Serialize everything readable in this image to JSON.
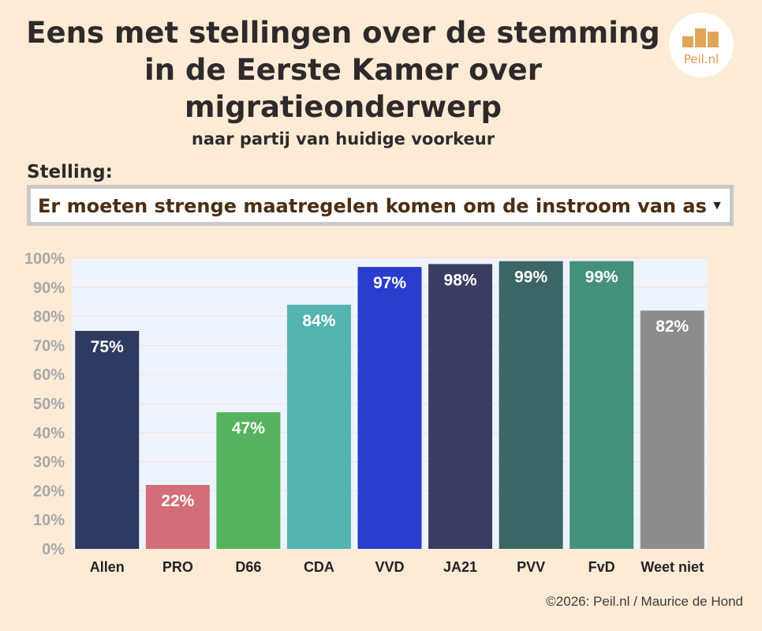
{
  "header": {
    "title_lines": [
      "Eens met stellingen over de stemming",
      "in de Eerste Kamer over",
      "migratieonderwerp"
    ],
    "subtitle": "naar partij van huidige voorkeur"
  },
  "logo": {
    "text": "Peil.nl",
    "icon": "bar-chart-logo"
  },
  "statement": {
    "label": "Stelling:",
    "selected": "Er moeten strenge maatregelen komen om de instroom van asie",
    "caret_icon": "dropdown-caret"
  },
  "footer": {
    "credit": "©2026: Peil.nl / Maurice de Hond"
  },
  "colors": {
    "background": "#fdebd6",
    "plot_background": "#eef4fc",
    "axis_text": "#a8a8a8"
  },
  "chart_data": {
    "type": "bar",
    "categories": [
      "Allen",
      "PRO",
      "D66",
      "CDA",
      "VVD",
      "JA21",
      "PVV",
      "FvD",
      "Weet niet"
    ],
    "values": [
      75,
      22,
      47,
      84,
      97,
      98,
      99,
      99,
      82
    ],
    "data_labels": [
      "75%",
      "22%",
      "47%",
      "84%",
      "97%",
      "98%",
      "99%",
      "99%",
      "82%"
    ],
    "bar_colors": [
      "#2e3a60",
      "#d36d78",
      "#55b35f",
      "#55b3b0",
      "#2b3dcc",
      "#3a3c61",
      "#3c6565",
      "#43917b",
      "#8c8c8c"
    ],
    "ylim": [
      0,
      100
    ],
    "yticks": [
      "0%",
      "10%",
      "20%",
      "30%",
      "40%",
      "50%",
      "60%",
      "70%",
      "80%",
      "90%",
      "100%"
    ],
    "grid": true
  }
}
